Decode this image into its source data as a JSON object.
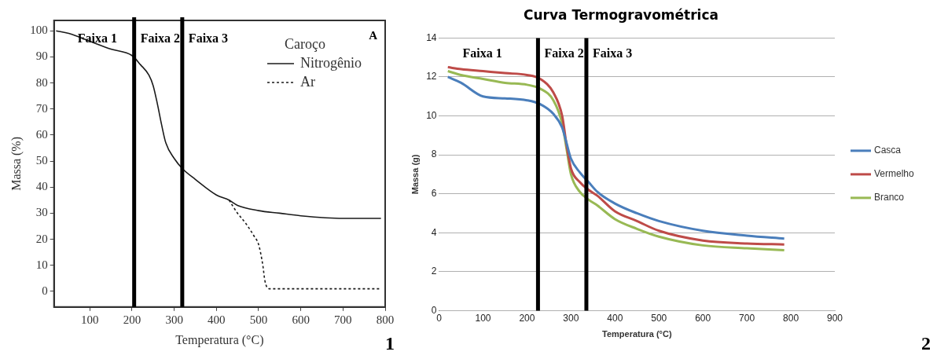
{
  "chart_data": [
    {
      "type": "line",
      "xlabel": "Temperatura (°C)",
      "ylabel": "Massa (%)",
      "legend_title": "Caroço",
      "legend": "top right",
      "grid": false,
      "marker": "none",
      "xlim": [
        15,
        800
      ],
      "xticks": [
        100,
        200,
        300,
        400,
        500,
        600,
        700,
        800
      ],
      "ylim": [
        -6,
        104
      ],
      "yticks": [
        0,
        10,
        20,
        30,
        40,
        50,
        60,
        70,
        80,
        90,
        100
      ],
      "series": [
        {
          "name": "Nitrogênio",
          "color": "#1a1a1a",
          "line_style": "solid",
          "x": [
            20,
            50,
            100,
            150,
            200,
            220,
            240,
            250,
            260,
            270,
            280,
            300,
            320,
            350,
            400,
            430,
            450,
            500,
            550,
            600,
            700,
            790
          ],
          "values": [
            100,
            99,
            96,
            93,
            90.5,
            87,
            83,
            79,
            72,
            64,
            57,
            51,
            47,
            43,
            37,
            35,
            33,
            31,
            30,
            29,
            28,
            28
          ]
        },
        {
          "name": "Ar",
          "color": "#1a1a1a",
          "line_style": "dashed",
          "x": [
            430,
            450,
            470,
            490,
            500,
            510,
            515,
            525,
            790
          ],
          "values": [
            35,
            30,
            26,
            21,
            18,
            10,
            4,
            1,
            1
          ]
        }
      ],
      "ref_lines": [
        {
          "axis": "x",
          "value": 205,
          "color": "#000000"
        },
        {
          "axis": "x",
          "value": 319,
          "color": "#000000"
        }
      ],
      "annotations": [
        "Faixa 1",
        "Faixa 2",
        "Faixa 3",
        "A",
        "1"
      ]
    },
    {
      "type": "line",
      "title": "Curva Termogravométrica",
      "xlabel": "Temperatura (°C)",
      "ylabel": "Massa (g)",
      "legend": "right",
      "grid": "y",
      "marker": "none",
      "xlim": [
        0,
        900
      ],
      "xticks": [
        0,
        100,
        200,
        300,
        400,
        500,
        600,
        700,
        800,
        900
      ],
      "ylim": [
        0,
        14
      ],
      "yticks": [
        0,
        2,
        4,
        6,
        8,
        10,
        12,
        14
      ],
      "x": [
        20,
        50,
        100,
        150,
        200,
        230,
        260,
        280,
        290,
        300,
        320,
        340,
        360,
        400,
        450,
        500,
        600,
        700,
        785
      ],
      "series": [
        {
          "name": "Casca",
          "color": "#4a7ebb",
          "values": [
            12.0,
            11.7,
            11.0,
            10.9,
            10.8,
            10.6,
            10.1,
            9.4,
            8.6,
            7.8,
            7.1,
            6.6,
            6.1,
            5.5,
            5.0,
            4.6,
            4.1,
            3.85,
            3.7
          ]
        },
        {
          "name": "Vermelho",
          "color": "#be4b48",
          "values": [
            12.5,
            12.4,
            12.3,
            12.2,
            12.1,
            11.9,
            11.2,
            10.0,
            8.5,
            7.3,
            6.6,
            6.2,
            5.9,
            5.1,
            4.6,
            4.1,
            3.6,
            3.45,
            3.4
          ]
        },
        {
          "name": "Branco",
          "color": "#98b954",
          "values": [
            12.3,
            12.1,
            11.9,
            11.7,
            11.6,
            11.4,
            10.8,
            9.6,
            8.3,
            7.0,
            6.1,
            5.7,
            5.4,
            4.7,
            4.2,
            3.8,
            3.35,
            3.2,
            3.1
          ]
        }
      ],
      "ref_lines": [
        {
          "axis": "x",
          "value": 225,
          "color": "#000000"
        },
        {
          "axis": "x",
          "value": 335,
          "color": "#000000"
        }
      ],
      "annotations": [
        "Faixa 1",
        "Faixa 2",
        "Faixa 3",
        "2"
      ]
    }
  ]
}
